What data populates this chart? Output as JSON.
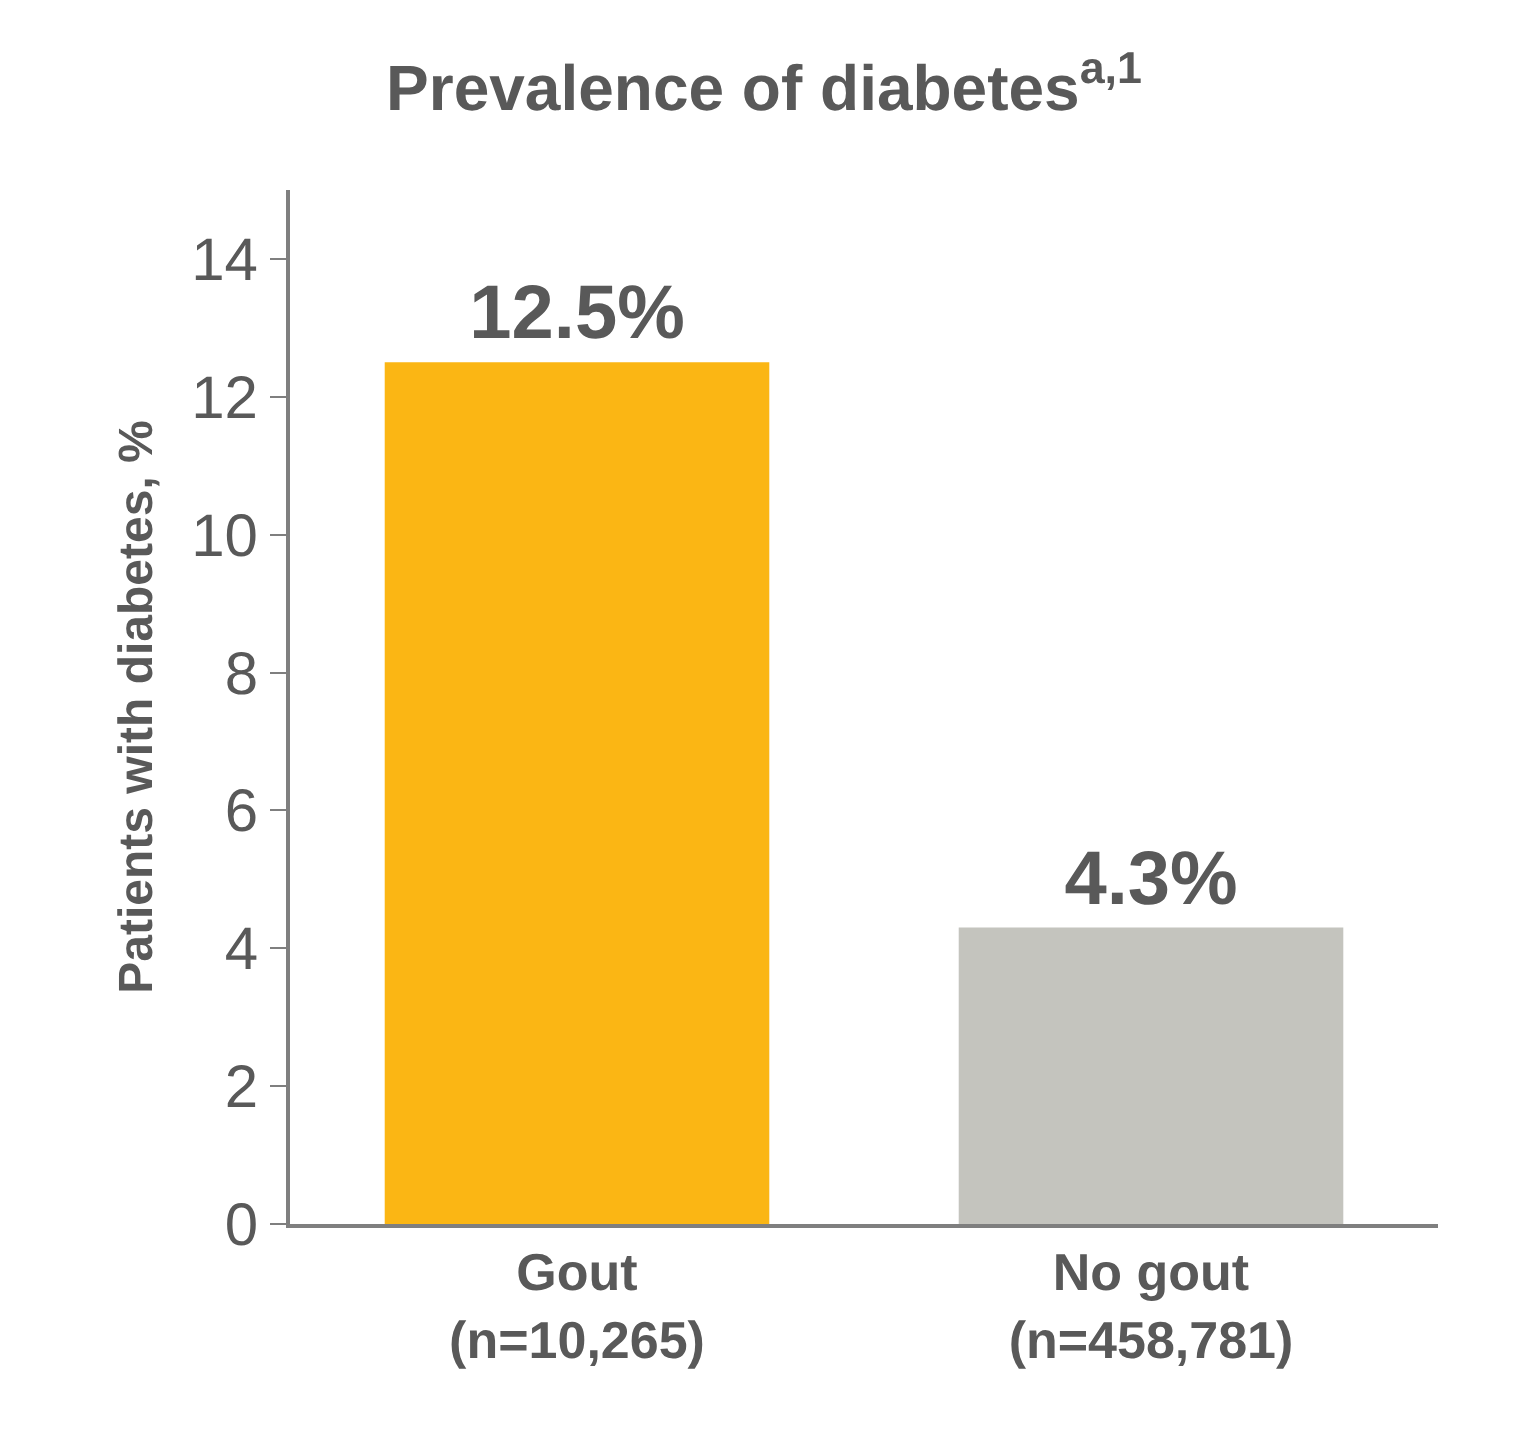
{
  "chart_data": {
    "type": "bar",
    "title": "Prevalence of diabetes$^{a,1}$",
    "ylabel": "Patients with diabetes, %",
    "categories": [
      "Gout\n(n=10,265)",
      "No gout\n(n=458,781)"
    ],
    "values": [
      12.5,
      4.3
    ],
    "colors": [
      "#fbb614",
      "#c4c4be"
    ],
    "value_labels": [
      "12.5%",
      "4.3%"
    ],
    "ylim": [
      0,
      15
    ],
    "yticks": [
      0,
      2,
      4,
      6,
      8,
      10,
      12,
      14
    ]
  }
}
